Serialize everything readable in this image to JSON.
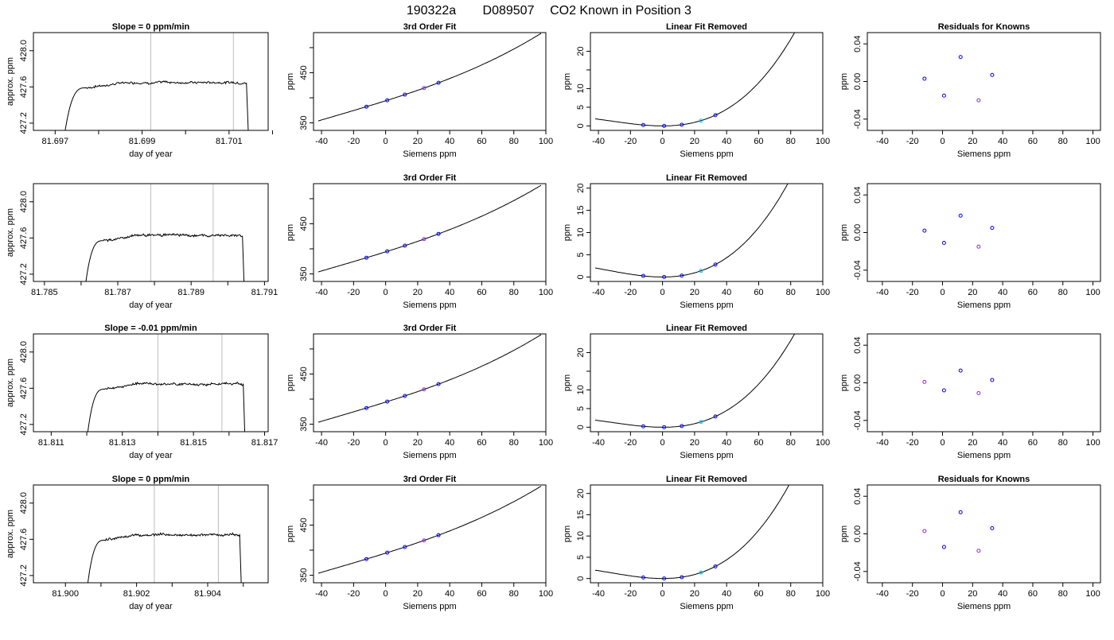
{
  "title_parts": [
    "190322a",
    "D089507",
    "CO2 Known in Position  3"
  ],
  "chart_data": [
    {
      "row": 0,
      "type": "line",
      "title": "Slope =  0  ppm/min",
      "xlabel": "day of year",
      "ylabel": "approx. ppm",
      "xlim": [
        81.6965,
        81.7019
      ],
      "ylim": [
        427.12,
        428.2
      ],
      "xticks": [
        81.697,
        81.698,
        81.699,
        81.7,
        81.701,
        81.702
      ],
      "xticklabels": [
        "81.697",
        "",
        "81.699",
        "",
        "81.701",
        ""
      ],
      "yticks": [
        427.2,
        427.6,
        428.0
      ],
      "yticklabels": [
        "427.2",
        "427.6",
        "428.0"
      ],
      "vlines": [
        81.6992,
        81.7011
      ],
      "t_start": 81.6972,
      "t_rise": 81.6977,
      "t_end": 81.7014,
      "t_end2": 81.70145,
      "level": 427.65
    },
    {
      "row": 0,
      "type": "line",
      "title": "3rd Order Fit",
      "xlabel": "Siemens ppm",
      "ylabel": "ppm",
      "xlim": [
        -45,
        100
      ],
      "ylim": [
        335,
        530
      ],
      "xticks": [
        -40,
        -20,
        0,
        20,
        40,
        60,
        80,
        100
      ],
      "xticklabels": [
        "-40",
        "-20",
        "0",
        "20",
        "40",
        "60",
        "80",
        "100"
      ],
      "yticks": [
        350,
        400,
        450,
        500
      ],
      "yticklabels": [
        "350",
        "",
        "450",
        ""
      ],
      "curve": {
        "a": 394,
        "b": 1.0,
        "c": 0.00195,
        "d": 2.1e-05,
        "x0": -42,
        "x1": 97
      },
      "points": [
        {
          "x": -12,
          "color": "blue"
        },
        {
          "x": 1,
          "color": "blue"
        },
        {
          "x": 12,
          "color": "blue"
        },
        {
          "x": 24,
          "color": "violet"
        },
        {
          "x": 33,
          "color": "blue"
        }
      ]
    },
    {
      "row": 0,
      "type": "line",
      "title": "Linear Fit Removed",
      "xlabel": "Siemens ppm",
      "ylabel": "ppm",
      "xlim": [
        -45,
        100
      ],
      "ylim": [
        -1.2,
        25
      ],
      "xticks": [
        -40,
        -20,
        0,
        20,
        40,
        60,
        80,
        100
      ],
      "xticklabels": [
        "-40",
        "-20",
        "0",
        "20",
        "40",
        "60",
        "80",
        "100"
      ],
      "yticks": [
        0,
        5,
        10,
        15,
        20
      ],
      "yticklabels": [
        "0",
        "5",
        "10",
        "",
        "20"
      ],
      "curve": {
        "a": 0,
        "b": 0,
        "c": 0.00195,
        "d": 2.1e-05,
        "x0": -42,
        "x1": 97
      },
      "points": [
        {
          "x": -12,
          "color": "blue"
        },
        {
          "x": 1,
          "color": "blue"
        },
        {
          "x": 12,
          "color": "blue"
        },
        {
          "x": 24,
          "color": "cyan"
        },
        {
          "x": 33,
          "color": "blue"
        }
      ]
    },
    {
      "row": 0,
      "type": "scatter",
      "title": "Residuals for Knowns",
      "xlabel": "Siemens ppm",
      "ylabel": "ppm",
      "xlim": [
        -50,
        105
      ],
      "ylim": [
        -0.052,
        0.052
      ],
      "xticks": [
        -40,
        -20,
        0,
        20,
        40,
        60,
        80,
        100
      ],
      "xticklabels": [
        "-40",
        "-20",
        "0",
        "20",
        "40",
        "60",
        "80",
        "100"
      ],
      "yticks": [
        -0.04,
        0,
        0.04
      ],
      "yticklabels": [
        "-0.04",
        "0.00",
        "0.04"
      ],
      "points": [
        {
          "x": -12,
          "y": 0.003,
          "color": "blue"
        },
        {
          "x": 1,
          "y": -0.015,
          "color": "blue"
        },
        {
          "x": 12,
          "y": 0.026,
          "color": "blue"
        },
        {
          "x": 24,
          "y": -0.02,
          "color": "violet"
        },
        {
          "x": 33,
          "y": 0.007,
          "color": "blue"
        }
      ]
    },
    {
      "row": 1,
      "type": "line",
      "title": "",
      "xlabel": "day of year",
      "ylabel": "approx. ppm",
      "xlim": [
        81.7847,
        81.7911
      ],
      "ylim": [
        427.12,
        428.2
      ],
      "xticks": [
        81.785,
        81.786,
        81.787,
        81.788,
        81.789,
        81.79,
        81.791
      ],
      "xticklabels": [
        "81.785",
        "",
        "81.787",
        "",
        "81.789",
        "",
        "81.791"
      ],
      "yticks": [
        427.2,
        427.6,
        428.0
      ],
      "yticklabels": [
        "427.2",
        "427.6",
        "428.0"
      ],
      "vlines": [
        81.7879,
        81.7896
      ],
      "t_start": 81.7861,
      "t_rise": 81.7866,
      "t_end": 81.7904,
      "t_end2": 81.79045,
      "level": 427.63
    },
    {
      "row": 1,
      "type": "line",
      "title": "3rd Order Fit",
      "xlabel": "Siemens ppm",
      "ylabel": "ppm",
      "xlim": [
        -45,
        100
      ],
      "ylim": [
        335,
        530
      ],
      "xticks": [
        -40,
        -20,
        0,
        20,
        40,
        60,
        80,
        100
      ],
      "xticklabels": [
        "-40",
        "-20",
        "0",
        "20",
        "40",
        "60",
        "80",
        "100"
      ],
      "yticks": [
        350,
        400,
        450,
        500
      ],
      "yticklabels": [
        "350",
        "",
        "450",
        ""
      ],
      "curve": {
        "a": 394,
        "b": 1.0,
        "c": 0.00195,
        "d": 1.9e-05,
        "x0": -42,
        "x1": 97
      },
      "points": [
        {
          "x": -12,
          "color": "blue"
        },
        {
          "x": 1,
          "color": "blue"
        },
        {
          "x": 12,
          "color": "blue"
        },
        {
          "x": 24,
          "color": "violet"
        },
        {
          "x": 33,
          "color": "blue"
        }
      ]
    },
    {
      "row": 1,
      "type": "line",
      "title": "Linear Fit Removed",
      "xlabel": "Siemens ppm",
      "ylabel": "ppm",
      "xlim": [
        -45,
        100
      ],
      "ylim": [
        -1.0,
        21
      ],
      "xticks": [
        -40,
        -20,
        0,
        20,
        40,
        60,
        80,
        100
      ],
      "xticklabels": [
        "-40",
        "-20",
        "0",
        "20",
        "40",
        "60",
        "80",
        "100"
      ],
      "yticks": [
        0,
        5,
        10,
        15,
        20
      ],
      "yticklabels": [
        "0",
        "5",
        "10",
        "15",
        "20"
      ],
      "curve": {
        "a": 0,
        "b": 0,
        "c": 0.00195,
        "d": 1.9e-05,
        "x0": -42,
        "x1": 97
      },
      "points": [
        {
          "x": -12,
          "color": "blue"
        },
        {
          "x": 1,
          "color": "blue"
        },
        {
          "x": 12,
          "color": "blue"
        },
        {
          "x": 24,
          "color": "cyan"
        },
        {
          "x": 33,
          "color": "blue"
        }
      ]
    },
    {
      "row": 1,
      "type": "scatter",
      "title": "",
      "xlabel": "Siemens ppm",
      "ylabel": "ppm",
      "xlim": [
        -50,
        105
      ],
      "ylim": [
        -0.052,
        0.052
      ],
      "xticks": [
        -40,
        -20,
        0,
        20,
        40,
        60,
        80,
        100
      ],
      "xticklabels": [
        "-40",
        "-20",
        "0",
        "20",
        "40",
        "60",
        "80",
        "100"
      ],
      "yticks": [
        -0.04,
        0,
        0.04
      ],
      "yticklabels": [
        "-0.04",
        "0.00",
        "0.04"
      ],
      "points": [
        {
          "x": -12,
          "y": 0.002,
          "color": "blue"
        },
        {
          "x": 1,
          "y": -0.011,
          "color": "blue"
        },
        {
          "x": 12,
          "y": 0.018,
          "color": "blue"
        },
        {
          "x": 24,
          "y": -0.015,
          "color": "violet"
        },
        {
          "x": 33,
          "y": 0.005,
          "color": "blue"
        }
      ]
    },
    {
      "row": 2,
      "type": "line",
      "title": "Slope =  -0.01  ppm/min",
      "xlabel": "day of year",
      "ylabel": "approx. ppm",
      "xlim": [
        81.8105,
        81.8171
      ],
      "ylim": [
        427.12,
        428.2
      ],
      "xticks": [
        81.811,
        81.812,
        81.813,
        81.814,
        81.815,
        81.816,
        81.817
      ],
      "xticklabels": [
        "81.811",
        "",
        "81.813",
        "",
        "81.815",
        "",
        "81.817"
      ],
      "yticks": [
        427.2,
        427.6,
        428.0
      ],
      "yticklabels": [
        "427.2",
        "427.6",
        "428.0"
      ],
      "vlines": [
        81.814,
        81.8158
      ],
      "t_start": 81.812,
      "t_rise": 81.8125,
      "t_end": 81.8164,
      "t_end2": 81.81645,
      "level": 427.65
    },
    {
      "row": 2,
      "type": "line",
      "title": "3rd Order Fit",
      "xlabel": "Siemens ppm",
      "ylabel": "ppm",
      "xlim": [
        -45,
        100
      ],
      "ylim": [
        335,
        530
      ],
      "xticks": [
        -40,
        -20,
        0,
        20,
        40,
        60,
        80,
        100
      ],
      "xticklabels": [
        "-40",
        "-20",
        "0",
        "20",
        "40",
        "60",
        "80",
        "100"
      ],
      "yticks": [
        350,
        400,
        450,
        500
      ],
      "yticklabels": [
        "350",
        "",
        "450",
        ""
      ],
      "curve": {
        "a": 394,
        "b": 1.0,
        "c": 0.00195,
        "d": 2.1e-05,
        "x0": -42,
        "x1": 97
      },
      "points": [
        {
          "x": -12,
          "color": "blue"
        },
        {
          "x": 1,
          "color": "blue"
        },
        {
          "x": 12,
          "color": "blue"
        },
        {
          "x": 24,
          "color": "violet"
        },
        {
          "x": 33,
          "color": "blue"
        }
      ]
    },
    {
      "row": 2,
      "type": "line",
      "title": "Linear Fit Removed",
      "xlabel": "Siemens ppm",
      "ylabel": "ppm",
      "xlim": [
        -45,
        100
      ],
      "ylim": [
        -1.2,
        25
      ],
      "xticks": [
        -40,
        -20,
        0,
        20,
        40,
        60,
        80,
        100
      ],
      "xticklabels": [
        "-40",
        "-20",
        "0",
        "20",
        "40",
        "60",
        "80",
        "100"
      ],
      "yticks": [
        0,
        5,
        10,
        15,
        20
      ],
      "yticklabels": [
        "0",
        "5",
        "10",
        "",
        "20"
      ],
      "curve": {
        "a": 0,
        "b": 0,
        "c": 0.00195,
        "d": 2.1e-05,
        "x0": -42,
        "x1": 97
      },
      "points": [
        {
          "x": -12,
          "color": "blue"
        },
        {
          "x": 1,
          "color": "blue"
        },
        {
          "x": 12,
          "color": "blue"
        },
        {
          "x": 24,
          "color": "cyan"
        },
        {
          "x": 33,
          "color": "blue"
        }
      ]
    },
    {
      "row": 2,
      "type": "scatter",
      "title": "",
      "xlabel": "Siemens ppm",
      "ylabel": "ppm",
      "xlim": [
        -50,
        105
      ],
      "ylim": [
        -0.052,
        0.052
      ],
      "xticks": [
        -40,
        -20,
        0,
        20,
        40,
        60,
        80,
        100
      ],
      "xticklabels": [
        "-40",
        "-20",
        "0",
        "20",
        "40",
        "60",
        "80",
        "100"
      ],
      "yticks": [
        -0.04,
        0,
        0.04
      ],
      "yticklabels": [
        "-0.04",
        "0.00",
        "0.04"
      ],
      "points": [
        {
          "x": -12,
          "y": 0.001,
          "color": "violet"
        },
        {
          "x": 1,
          "y": -0.008,
          "color": "blue"
        },
        {
          "x": 12,
          "y": 0.013,
          "color": "blue"
        },
        {
          "x": 24,
          "y": -0.011,
          "color": "violet"
        },
        {
          "x": 33,
          "y": 0.003,
          "color": "blue"
        }
      ]
    },
    {
      "row": 3,
      "type": "line",
      "title": "Slope =  0  ppm/min",
      "xlabel": "day of year",
      "ylabel": "approx. ppm",
      "xlim": [
        81.8991,
        81.9057
      ],
      "ylim": [
        427.12,
        428.2
      ],
      "xticks": [
        81.9,
        81.901,
        81.902,
        81.903,
        81.904,
        81.905
      ],
      "xticklabels": [
        "81.900",
        "",
        "81.902",
        "",
        "81.904",
        ""
      ],
      "yticks": [
        427.2,
        427.6,
        428.0
      ],
      "yticklabels": [
        "427.2",
        "427.6",
        "428.0"
      ],
      "vlines": [
        81.9025,
        81.9043
      ],
      "t_start": 81.9006,
      "t_rise": 81.9011,
      "t_end": 81.9049,
      "t_end2": 81.90495,
      "level": 427.65
    },
    {
      "row": 3,
      "type": "line",
      "title": "3rd Order Fit",
      "xlabel": "Siemens ppm",
      "ylabel": "ppm",
      "xlim": [
        -45,
        100
      ],
      "ylim": [
        335,
        530
      ],
      "xticks": [
        -40,
        -20,
        0,
        20,
        40,
        60,
        80,
        100
      ],
      "xticklabels": [
        "-40",
        "-20",
        "0",
        "20",
        "40",
        "60",
        "80",
        "100"
      ],
      "yticks": [
        350,
        400,
        450,
        500
      ],
      "yticklabels": [
        "350",
        "",
        "450",
        ""
      ],
      "curve": {
        "a": 394,
        "b": 1.0,
        "c": 0.00195,
        "d": 2e-05,
        "x0": -42,
        "x1": 97
      },
      "points": [
        {
          "x": -12,
          "color": "blue"
        },
        {
          "x": 1,
          "color": "blue"
        },
        {
          "x": 12,
          "color": "blue"
        },
        {
          "x": 24,
          "color": "violet"
        },
        {
          "x": 33,
          "color": "blue"
        }
      ]
    },
    {
      "row": 3,
      "type": "line",
      "title": "Linear Fit Removed",
      "xlabel": "Siemens ppm",
      "ylabel": "ppm",
      "xlim": [
        -45,
        100
      ],
      "ylim": [
        -1.0,
        22
      ],
      "xticks": [
        -40,
        -20,
        0,
        20,
        40,
        60,
        80,
        100
      ],
      "xticklabels": [
        "-40",
        "-20",
        "0",
        "20",
        "40",
        "60",
        "80",
        "100"
      ],
      "yticks": [
        0,
        5,
        10,
        15,
        20
      ],
      "yticklabels": [
        "0",
        "5",
        "10",
        "15",
        "20"
      ],
      "curve": {
        "a": 0,
        "b": 0,
        "c": 0.00195,
        "d": 2e-05,
        "x0": -42,
        "x1": 97
      },
      "points": [
        {
          "x": -12,
          "color": "blue"
        },
        {
          "x": 1,
          "color": "blue"
        },
        {
          "x": 12,
          "color": "blue"
        },
        {
          "x": 24,
          "color": "cyan"
        },
        {
          "x": 33,
          "color": "blue"
        }
      ]
    },
    {
      "row": 3,
      "type": "scatter",
      "title": "Residuals for Knowns",
      "xlabel": "Siemens ppm",
      "ylabel": "ppm",
      "xlim": [
        -50,
        105
      ],
      "ylim": [
        -0.052,
        0.052
      ],
      "xticks": [
        -40,
        -20,
        0,
        20,
        40,
        60,
        80,
        100
      ],
      "xticklabels": [
        "-40",
        "-20",
        "0",
        "20",
        "40",
        "60",
        "80",
        "100"
      ],
      "yticks": [
        -0.04,
        0,
        0.04
      ],
      "yticklabels": [
        "-0.04",
        "0.00",
        "0.04"
      ],
      "points": [
        {
          "x": -12,
          "y": 0.003,
          "color": "violet"
        },
        {
          "x": 1,
          "y": -0.014,
          "color": "blue"
        },
        {
          "x": 12,
          "y": 0.023,
          "color": "blue"
        },
        {
          "x": 24,
          "y": -0.018,
          "color": "violet"
        },
        {
          "x": 33,
          "y": 0.006,
          "color": "blue"
        }
      ]
    }
  ],
  "colors": {
    "blue": "#0000ff",
    "violet": "#8a2be2",
    "cyan": "#00bfff",
    "grid": "#bebebe",
    "line": "#000000"
  }
}
